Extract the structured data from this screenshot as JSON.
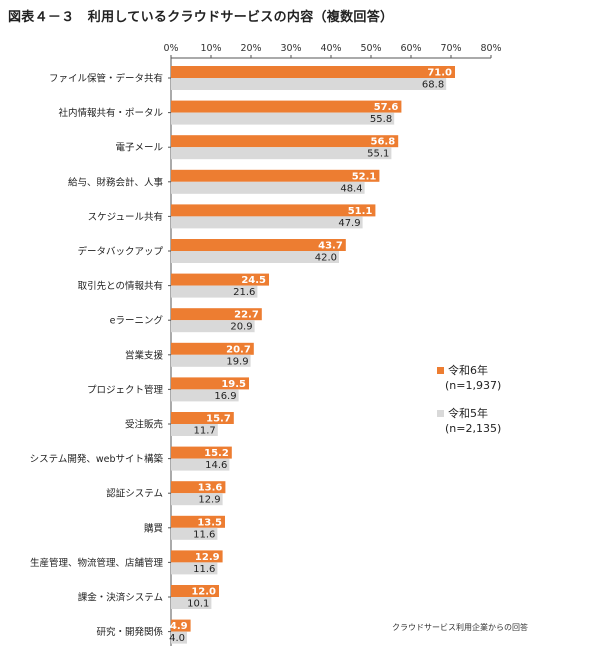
{
  "title": "図表４－３　利用しているクラウドサービスの内容（複数回答）",
  "chart_data": {
    "type": "bar",
    "orientation": "horizontal",
    "xlim": [
      0,
      80
    ],
    "ticks": [
      "0%",
      "10%",
      "20%",
      "30%",
      "40%",
      "50%",
      "60%",
      "70%",
      "80%"
    ],
    "tick_values": [
      0,
      10,
      20,
      30,
      40,
      50,
      60,
      70,
      80
    ],
    "categories": [
      "ファイル保管・データ共有",
      "社内情報共有・ポータル",
      "電子メール",
      "給与、財務会計、人事",
      "スケジュール共有",
      "データバックアップ",
      "取引先との情報共有",
      "eラーニング",
      "営業支援",
      "プロジェクト管理",
      "受注販売",
      "システム開発、webサイト構築",
      "認証システム",
      "購買",
      "生産管理、物流管理、店舗管理",
      "課金・決済システム",
      "研究・開発関係"
    ],
    "series": [
      {
        "name": "令和6年",
        "sub": "(n=1,937)",
        "color": "#ed7d31",
        "values": [
          71.0,
          57.6,
          56.8,
          52.1,
          51.1,
          43.7,
          24.5,
          22.7,
          20.7,
          19.5,
          15.7,
          15.2,
          13.6,
          13.5,
          12.9,
          12.0,
          4.9
        ]
      },
      {
        "name": "令和5年",
        "sub": "(n=2,135)",
        "color": "#d9d9d9",
        "values": [
          68.8,
          55.8,
          55.1,
          48.4,
          47.9,
          42.0,
          21.6,
          20.9,
          19.9,
          16.9,
          11.7,
          14.6,
          12.9,
          11.6,
          11.6,
          10.1,
          4.0
        ]
      }
    ],
    "legend_position": "right",
    "grid": false
  },
  "note": "クラウドサービス利用企業からの回答"
}
